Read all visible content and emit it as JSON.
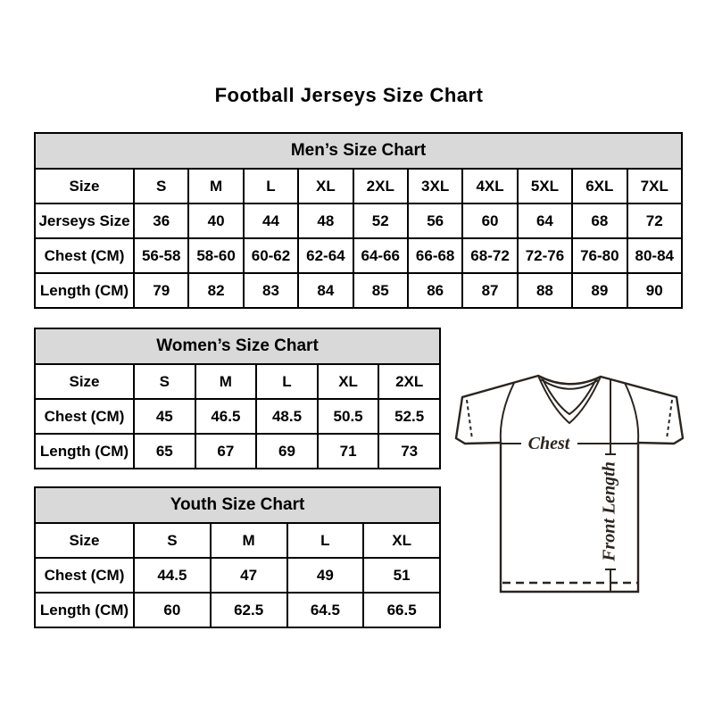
{
  "page": {
    "title": "Football Jerseys Size Chart"
  },
  "colors": {
    "section_header_bg": "#d9d9d9",
    "table_border": "#000000",
    "text": "#000000",
    "jersey_outline": "#2b241f"
  },
  "tables": [
    {
      "id": "mens",
      "title": "Men’s Size Chart",
      "rows": [
        [
          "Size",
          "S",
          "M",
          "L",
          "XL",
          "2XL",
          "3XL",
          "4XL",
          "5XL",
          "6XL",
          "7XL"
        ],
        [
          "Jerseys Size",
          "36",
          "40",
          "44",
          "48",
          "52",
          "56",
          "60",
          "64",
          "68",
          "72"
        ],
        [
          "Chest (CM)",
          "56-58",
          "58-60",
          "60-62",
          "62-64",
          "64-66",
          "66-68",
          "68-72",
          "72-76",
          "76-80",
          "80-84"
        ],
        [
          "Length (CM)",
          "79",
          "82",
          "83",
          "84",
          "85",
          "86",
          "87",
          "88",
          "89",
          "90"
        ]
      ]
    },
    {
      "id": "womens",
      "title": "Women’s Size Chart",
      "rows": [
        [
          "Size",
          "S",
          "M",
          "L",
          "XL",
          "2XL"
        ],
        [
          "Chest (CM)",
          "45",
          "46.5",
          "48.5",
          "50.5",
          "52.5"
        ],
        [
          "Length (CM)",
          "65",
          "67",
          "69",
          "71",
          "73"
        ]
      ]
    },
    {
      "id": "youth",
      "title": "Youth Size Chart",
      "rows": [
        [
          "Size",
          "S",
          "M",
          "L",
          "XL"
        ],
        [
          "Chest (CM)",
          "44.5",
          "47",
          "49",
          "51"
        ],
        [
          "Length (CM)",
          "60",
          "62.5",
          "64.5",
          "66.5"
        ]
      ]
    }
  ],
  "diagram": {
    "chest_label": "Chest",
    "front_length_label": "Front Length"
  }
}
